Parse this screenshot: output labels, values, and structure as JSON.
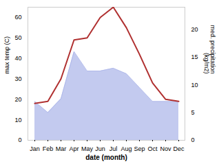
{
  "chart_data": {
    "type": "line",
    "categories": [
      "Jan",
      "Feb",
      "Mar",
      "Apr",
      "May",
      "Jun",
      "Jul",
      "Aug",
      "Sep",
      "Oct",
      "Nov",
      "Dec"
    ],
    "xlabel": "date (month)",
    "ylabel": "max temp (C)",
    "y2label": "med. precipitation\n(kg/m2)",
    "ylim": [
      0,
      65
    ],
    "yticks": [
      0,
      10,
      20,
      30,
      40,
      50,
      60
    ],
    "y2lim": [
      0,
      24
    ],
    "y2ticks": [
      0,
      5,
      10,
      15,
      20
    ],
    "grid": false,
    "series": [
      {
        "type": "line",
        "color": "#b03030",
        "values": [
          18,
          19,
          30,
          49,
          50,
          60,
          65,
          55,
          42,
          28,
          20,
          19
        ]
      },
      {
        "type": "area",
        "axis": "y2",
        "color": "#aab4e8",
        "values": [
          7,
          5,
          7.5,
          16,
          12.5,
          12.5,
          13,
          12,
          9.5,
          7,
          7,
          7
        ]
      }
    ]
  }
}
